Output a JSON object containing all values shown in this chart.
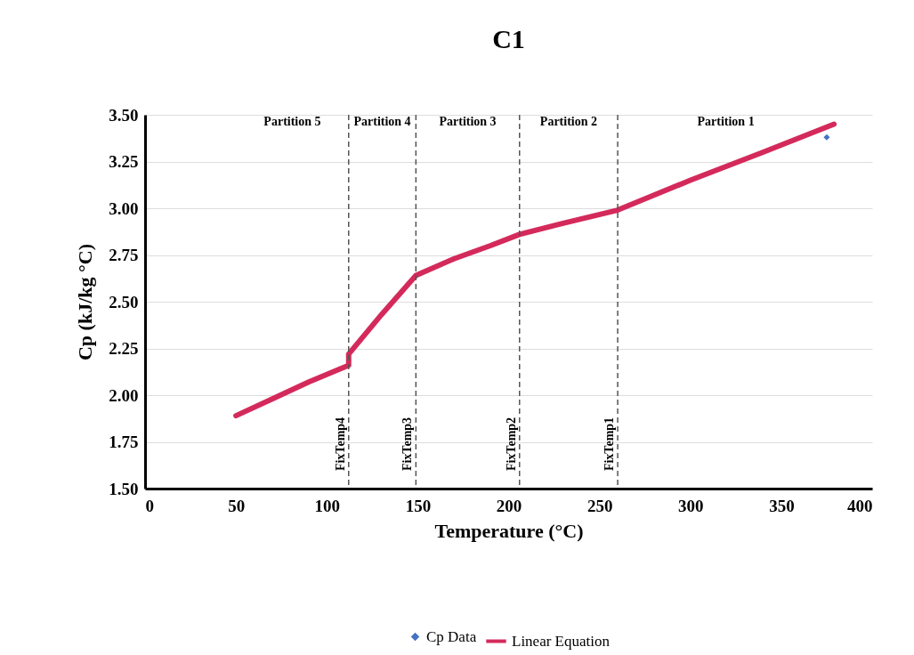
{
  "chart_data": {
    "type": "line",
    "title": "C1",
    "xlabel": "Temperature (°C)",
    "ylabel": "Cp (kJ/kg °C)",
    "x": [
      50,
      70,
      90,
      112,
      112,
      130,
      149,
      170,
      190,
      206,
      230,
      260,
      300,
      340,
      379
    ],
    "series": [
      {
        "name": "Cp Data",
        "type": "scatter",
        "marker": "diamond",
        "color": "#4472c4",
        "x": [
          375
        ],
        "values": [
          3.38
        ]
      },
      {
        "name": "Linear Equation",
        "color": "#d42a5b",
        "values": [
          1.89,
          1.98,
          2.07,
          2.16,
          2.22,
          2.43,
          2.64,
          2.73,
          2.8,
          2.86,
          2.92,
          2.99,
          3.15,
          3.3,
          3.45
        ]
      }
    ],
    "xlim": [
      0,
      400
    ],
    "xticks": [
      0,
      50,
      100,
      150,
      200,
      250,
      300,
      350,
      400
    ],
    "ylim": [
      1.5,
      3.5
    ],
    "yticks": [
      {
        "value": 1.5,
        "label": "1.50"
      },
      {
        "value": 1.75,
        "label": "1.75"
      },
      {
        "value": 2,
        "label": "2.00"
      },
      {
        "value": 2.25,
        "label": "2.25"
      },
      {
        "value": 2.5,
        "label": "2.50"
      },
      {
        "value": 2.75,
        "label": "2.75"
      },
      {
        "value": 3,
        "label": "3.00"
      },
      {
        "value": 3.25,
        "label": "3.25"
      },
      {
        "value": 3.5,
        "label": "3.50"
      }
    ],
    "ref_lines": [
      {
        "axis": "x",
        "value": 112,
        "label": "FixTemp4",
        "color": "#555555",
        "line_style": "dashed"
      },
      {
        "axis": "x",
        "value": 149,
        "label": "FixTemp3",
        "color": "#555555",
        "line_style": "dashed"
      },
      {
        "axis": "x",
        "value": 206,
        "label": "FixTemp2",
        "color": "#555555",
        "line_style": "dashed"
      },
      {
        "axis": "x",
        "value": 260,
        "label": "FixTemp1",
        "color": "#555555",
        "line_style": "dashed"
      }
    ],
    "annotations": [
      "Partition 5",
      "Partition 4",
      "Partition 3",
      "Partition 2",
      "Partition 1"
    ],
    "grid": "y",
    "legend": "bottom",
    "line_style": "solid"
  }
}
